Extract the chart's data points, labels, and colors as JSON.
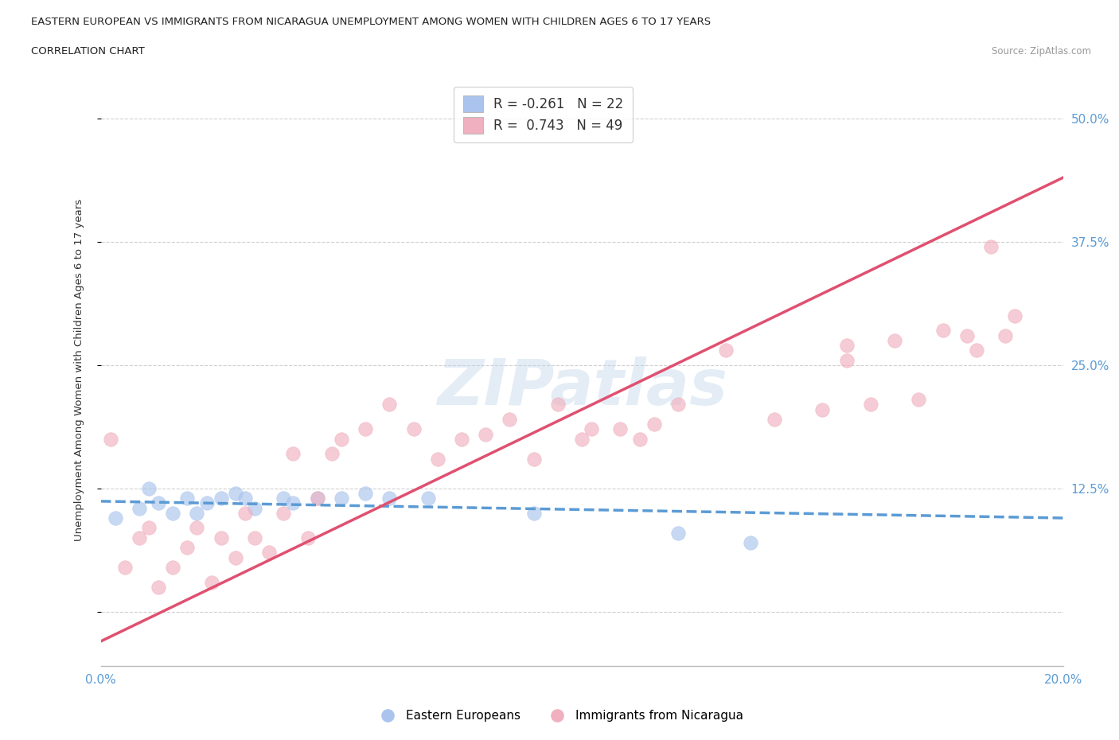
{
  "title_line1": "EASTERN EUROPEAN VS IMMIGRANTS FROM NICARAGUA UNEMPLOYMENT AMONG WOMEN WITH CHILDREN AGES 6 TO 17 YEARS",
  "title_line2": "CORRELATION CHART",
  "source": "Source: ZipAtlas.com",
  "ylabel": "Unemployment Among Women with Children Ages 6 to 17 years",
  "xlim": [
    0.0,
    0.2
  ],
  "ylim": [
    -0.055,
    0.545
  ],
  "xticks": [
    0.0,
    0.05,
    0.1,
    0.15,
    0.2
  ],
  "xtick_labels": [
    "0.0%",
    "",
    "",
    "",
    "20.0%"
  ],
  "yticks": [
    0.0,
    0.125,
    0.25,
    0.375,
    0.5
  ],
  "ytick_labels": [
    "",
    "12.5%",
    "25.0%",
    "37.5%",
    "50.0%"
  ],
  "bg_color": "#ffffff",
  "grid_color": "#d0d0d0",
  "blue_color": "#aac4ee",
  "pink_color": "#f0b0bf",
  "blue_line_color": "#5b9bd5",
  "pink_line_color": "#e05070",
  "tick_label_color": "#5b9bd5",
  "legend_R_blue": "R = -0.261",
  "legend_N_blue": "N = 22",
  "legend_R_pink": "R =  0.743",
  "legend_N_pink": "N = 49",
  "label_blue": "Eastern Europeans",
  "label_pink": "Immigrants from Nicaragua",
  "blue_scatter_x": [
    0.003,
    0.008,
    0.01,
    0.012,
    0.015,
    0.018,
    0.02,
    0.022,
    0.025,
    0.028,
    0.03,
    0.032,
    0.038,
    0.04,
    0.045,
    0.05,
    0.055,
    0.06,
    0.068,
    0.09,
    0.12,
    0.135
  ],
  "blue_scatter_y": [
    0.095,
    0.105,
    0.125,
    0.11,
    0.1,
    0.115,
    0.1,
    0.11,
    0.115,
    0.12,
    0.115,
    0.105,
    0.115,
    0.11,
    0.115,
    0.115,
    0.12,
    0.115,
    0.115,
    0.1,
    0.08,
    0.07
  ],
  "pink_scatter_x": [
    0.002,
    0.005,
    0.008,
    0.01,
    0.012,
    0.015,
    0.018,
    0.02,
    0.023,
    0.025,
    0.028,
    0.03,
    0.032,
    0.035,
    0.038,
    0.04,
    0.043,
    0.045,
    0.048,
    0.05,
    0.055,
    0.06,
    0.065,
    0.07,
    0.075,
    0.08,
    0.085,
    0.09,
    0.095,
    0.1,
    0.102,
    0.108,
    0.112,
    0.115,
    0.12,
    0.13,
    0.14,
    0.15,
    0.155,
    0.16,
    0.165,
    0.17,
    0.175,
    0.18,
    0.182,
    0.185,
    0.188,
    0.19,
    0.155
  ],
  "pink_scatter_y": [
    0.175,
    0.045,
    0.075,
    0.085,
    0.025,
    0.045,
    0.065,
    0.085,
    0.03,
    0.075,
    0.055,
    0.1,
    0.075,
    0.06,
    0.1,
    0.16,
    0.075,
    0.115,
    0.16,
    0.175,
    0.185,
    0.21,
    0.185,
    0.155,
    0.175,
    0.18,
    0.195,
    0.155,
    0.21,
    0.175,
    0.185,
    0.185,
    0.175,
    0.19,
    0.21,
    0.265,
    0.195,
    0.205,
    0.255,
    0.21,
    0.275,
    0.215,
    0.285,
    0.28,
    0.265,
    0.37,
    0.28,
    0.3,
    0.27
  ],
  "blue_trend_x": [
    0.0,
    0.2
  ],
  "blue_trend_y": [
    0.112,
    0.095
  ],
  "pink_trend_x": [
    0.0,
    0.2
  ],
  "pink_trend_y": [
    -0.03,
    0.44
  ]
}
